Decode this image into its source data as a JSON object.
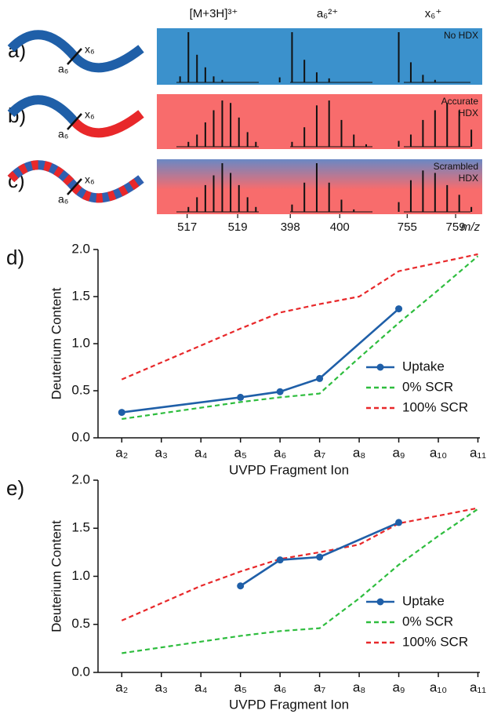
{
  "chart_data": [
    {
      "type": "spectrum",
      "ylim": [
        0,
        1
      ],
      "xlabel": "m/z",
      "cartoon_labels": {
        "a": "a₆",
        "x": "x₆"
      },
      "windows": [
        {
          "title": "[M+3H]³⁺",
          "xlim": [
            515.8,
            520.3
          ],
          "xticks": [
            517,
            519
          ],
          "x": [
            516.72,
            517.05,
            517.39,
            517.72,
            518.05,
            518.39,
            518.72,
            519.05,
            519.39,
            519.72
          ]
        },
        {
          "title": "a₆²⁺",
          "xlim": [
            397.2,
            401.8
          ],
          "xticks": [
            398,
            400
          ],
          "x": [
            397.57,
            398.07,
            398.57,
            399.07,
            399.57,
            400.07,
            400.57,
            401.07
          ]
        },
        {
          "title": "x₆⁺",
          "xlim": [
            753.1,
            761.2
          ],
          "xticks": [
            755,
            759
          ],
          "x": [
            754.3,
            755.3,
            756.3,
            757.3,
            758.3,
            759.3,
            760.3
          ]
        }
      ],
      "rows": [
        {
          "panel": "a)",
          "label": [
            "No HDX"
          ],
          "background": [
            "#3b91cc"
          ],
          "values": [
            [
              0.12,
              1.0,
              0.55,
              0.3,
              0.12,
              0.05,
              null,
              null,
              null,
              null
            ],
            [
              0.1,
              1.0,
              0.45,
              0.2,
              0.08,
              null,
              null,
              null
            ],
            [
              1.0,
              0.4,
              0.15,
              0.05,
              null,
              null,
              null
            ]
          ]
        },
        {
          "panel": "b)",
          "label": [
            "Accurate",
            "HDX"
          ],
          "background": [
            "#f86c6c"
          ],
          "values": [
            [
              null,
              0.1,
              0.25,
              0.5,
              0.75,
              0.95,
              0.9,
              0.6,
              0.3,
              0.1
            ],
            [
              null,
              0.1,
              0.4,
              0.85,
              0.95,
              0.55,
              0.25,
              0.05
            ],
            [
              0.12,
              0.25,
              0.55,
              0.75,
              0.9,
              0.75,
              0.35
            ]
          ]
        },
        {
          "panel": "c)",
          "label": [
            "Scrambled",
            "HDX"
          ],
          "background": [
            "#6a88c4",
            "#f86c6c"
          ],
          "values": [
            [
              null,
              0.1,
              0.3,
              0.55,
              0.75,
              1.0,
              0.8,
              0.55,
              0.3,
              0.1
            ],
            [
              null,
              0.15,
              0.6,
              1.0,
              0.6,
              0.25,
              0.05,
              null
            ],
            [
              0.2,
              0.65,
              0.85,
              0.8,
              0.55,
              0.35,
              0.1
            ]
          ]
        }
      ]
    },
    {
      "type": "line",
      "panel": "d)",
      "xlabel": "UVPD Fragment Ion",
      "ylabel": "Deuterium Content",
      "xlim": [
        1.4,
        11.05
      ],
      "ylim": [
        0,
        2
      ],
      "xticks": [
        {
          "value": 2,
          "label": "a₂"
        },
        {
          "value": 3,
          "label": "a₃"
        },
        {
          "value": 4,
          "label": "a₄"
        },
        {
          "value": 5,
          "label": "a₅"
        },
        {
          "value": 6,
          "label": "a₆"
        },
        {
          "value": 7,
          "label": "a₇"
        },
        {
          "value": 8,
          "label": "a₈"
        },
        {
          "value": 9,
          "label": "a₉"
        },
        {
          "value": 10,
          "label": "a₁₀"
        },
        {
          "value": 11,
          "label": "a₁₁"
        }
      ],
      "yticks": [
        {
          "value": 0,
          "label": "0.0"
        },
        {
          "value": 0.5,
          "label": "0.5"
        },
        {
          "value": 1,
          "label": "1.0"
        },
        {
          "value": 1.5,
          "label": "1.5"
        },
        {
          "value": 2,
          "label": "2.0"
        }
      ],
      "legend": "lower right",
      "x": [
        2,
        3,
        4,
        5,
        6,
        7,
        8,
        9,
        10,
        11
      ],
      "series": [
        {
          "name": "Uptake",
          "color": "#1f5fa8",
          "style": "solid",
          "markers": true,
          "x": [
            2,
            5,
            6,
            7,
            9
          ],
          "values": [
            0.27,
            0.43,
            0.49,
            0.63,
            1.37
          ]
        },
        {
          "name": "0% SCR",
          "color": "#2ebd3e",
          "style": "dashed",
          "markers": false,
          "values": [
            0.2,
            0.26,
            0.32,
            0.38,
            0.43,
            0.47,
            0.85,
            1.22,
            1.57,
            1.93
          ]
        },
        {
          "name": "100% SCR",
          "color": "#e8282a",
          "style": "dashed",
          "markers": false,
          "values": [
            0.62,
            0.8,
            0.98,
            1.16,
            1.33,
            1.42,
            1.5,
            1.77,
            1.86,
            1.95
          ]
        }
      ]
    },
    {
      "type": "line",
      "panel": "e)",
      "xlabel": "UVPD Fragment Ion",
      "ylabel": "Deuterium Content",
      "xlim": [
        1.4,
        11.05
      ],
      "ylim": [
        0,
        2
      ],
      "xticks": [
        {
          "value": 2,
          "label": "a₂"
        },
        {
          "value": 3,
          "label": "a₃"
        },
        {
          "value": 4,
          "label": "a₄"
        },
        {
          "value": 5,
          "label": "a₅"
        },
        {
          "value": 6,
          "label": "a₆"
        },
        {
          "value": 7,
          "label": "a₇"
        },
        {
          "value": 8,
          "label": "a₈"
        },
        {
          "value": 9,
          "label": "a₉"
        },
        {
          "value": 10,
          "label": "a₁₀"
        },
        {
          "value": 11,
          "label": "a₁₁"
        }
      ],
      "yticks": [
        {
          "value": 0,
          "label": "0.0"
        },
        {
          "value": 0.5,
          "label": "0.5"
        },
        {
          "value": 1,
          "label": "1.0"
        },
        {
          "value": 1.5,
          "label": "1.5"
        },
        {
          "value": 2,
          "label": "2.0"
        }
      ],
      "legend": "lower right",
      "x": [
        2,
        3,
        4,
        5,
        6,
        7,
        8,
        9,
        10,
        11
      ],
      "series": [
        {
          "name": "Uptake",
          "color": "#1f5fa8",
          "style": "solid",
          "markers": true,
          "x": [
            5,
            6,
            7,
            9
          ],
          "values": [
            0.9,
            1.17,
            1.2,
            1.56
          ]
        },
        {
          "name": "0% SCR",
          "color": "#2ebd3e",
          "style": "dashed",
          "markers": false,
          "values": [
            0.2,
            0.26,
            0.32,
            0.38,
            0.43,
            0.46,
            0.77,
            1.12,
            1.42,
            1.7
          ]
        },
        {
          "name": "100% SCR",
          "color": "#e8282a",
          "style": "dashed",
          "markers": false,
          "values": [
            0.54,
            0.72,
            0.9,
            1.05,
            1.18,
            1.25,
            1.33,
            1.55,
            1.63,
            1.71
          ]
        }
      ]
    }
  ]
}
